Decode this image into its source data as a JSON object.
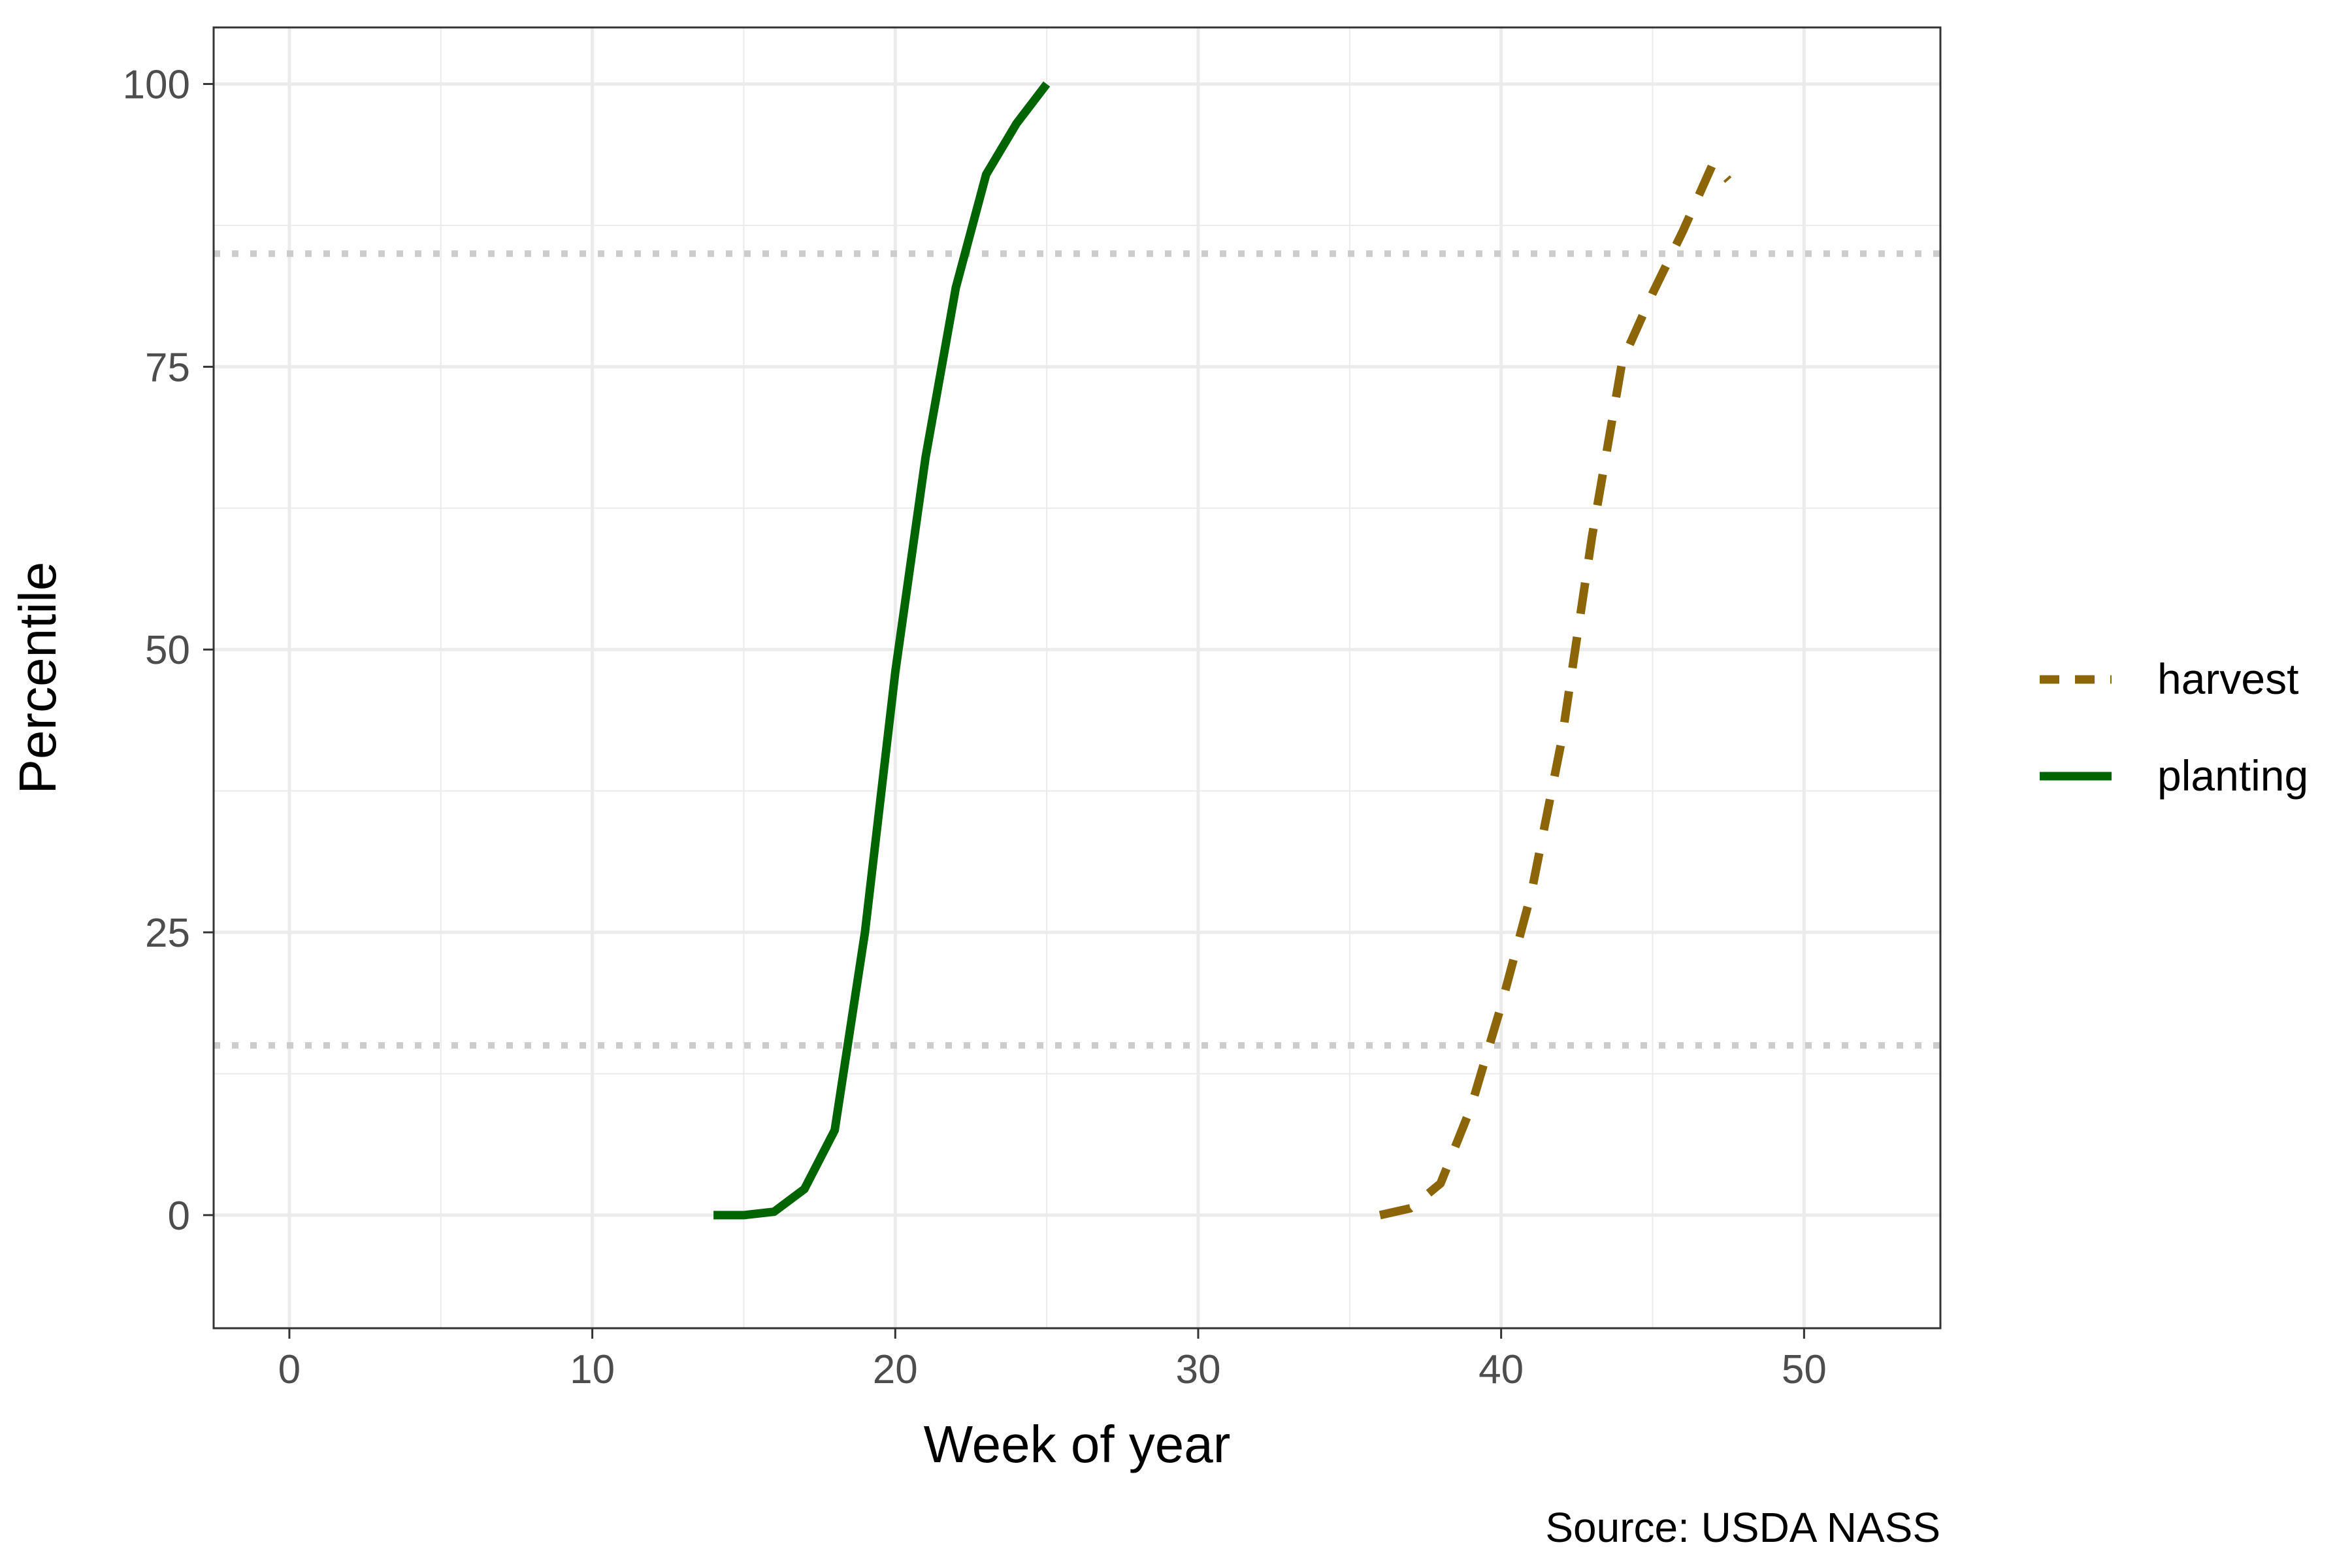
{
  "chart_data": {
    "type": "line",
    "title": "",
    "xlabel": "Week of year",
    "ylabel": "Percentile",
    "caption": "Source: USDA NASS",
    "xlim": [
      -2.5,
      54.5
    ],
    "ylim": [
      -10,
      105
    ],
    "x_ticks": [
      0,
      10,
      20,
      30,
      40,
      50
    ],
    "y_ticks": [
      0,
      25,
      50,
      75,
      100
    ],
    "x_tick_labels": [
      "0",
      "10",
      "20",
      "30",
      "40",
      "50"
    ],
    "y_tick_labels": [
      "0",
      "25",
      "50",
      "75",
      "100"
    ],
    "grid": true,
    "legend_position": "right",
    "reference_lines": [
      15,
      85
    ],
    "series": [
      {
        "name": "harvest",
        "color": "#8B6508",
        "line_style": "dashed",
        "x": [
          36,
          37,
          38,
          39,
          40,
          41,
          42,
          43,
          44,
          45,
          46,
          47,
          47.5
        ],
        "y": [
          0,
          0.6,
          2.8,
          9.5,
          18.5,
          28.5,
          42,
          60,
          75.5,
          81.5,
          87,
          93,
          91.5
        ]
      },
      {
        "name": "planting",
        "color": "#006400",
        "line_style": "solid",
        "x": [
          14,
          15,
          16,
          17,
          18,
          19,
          20,
          21,
          22,
          23,
          24,
          25
        ],
        "y": [
          0,
          0,
          0.3,
          2.3,
          7.5,
          25,
          48,
          67,
          82,
          92,
          96.5,
          100
        ]
      }
    ]
  }
}
